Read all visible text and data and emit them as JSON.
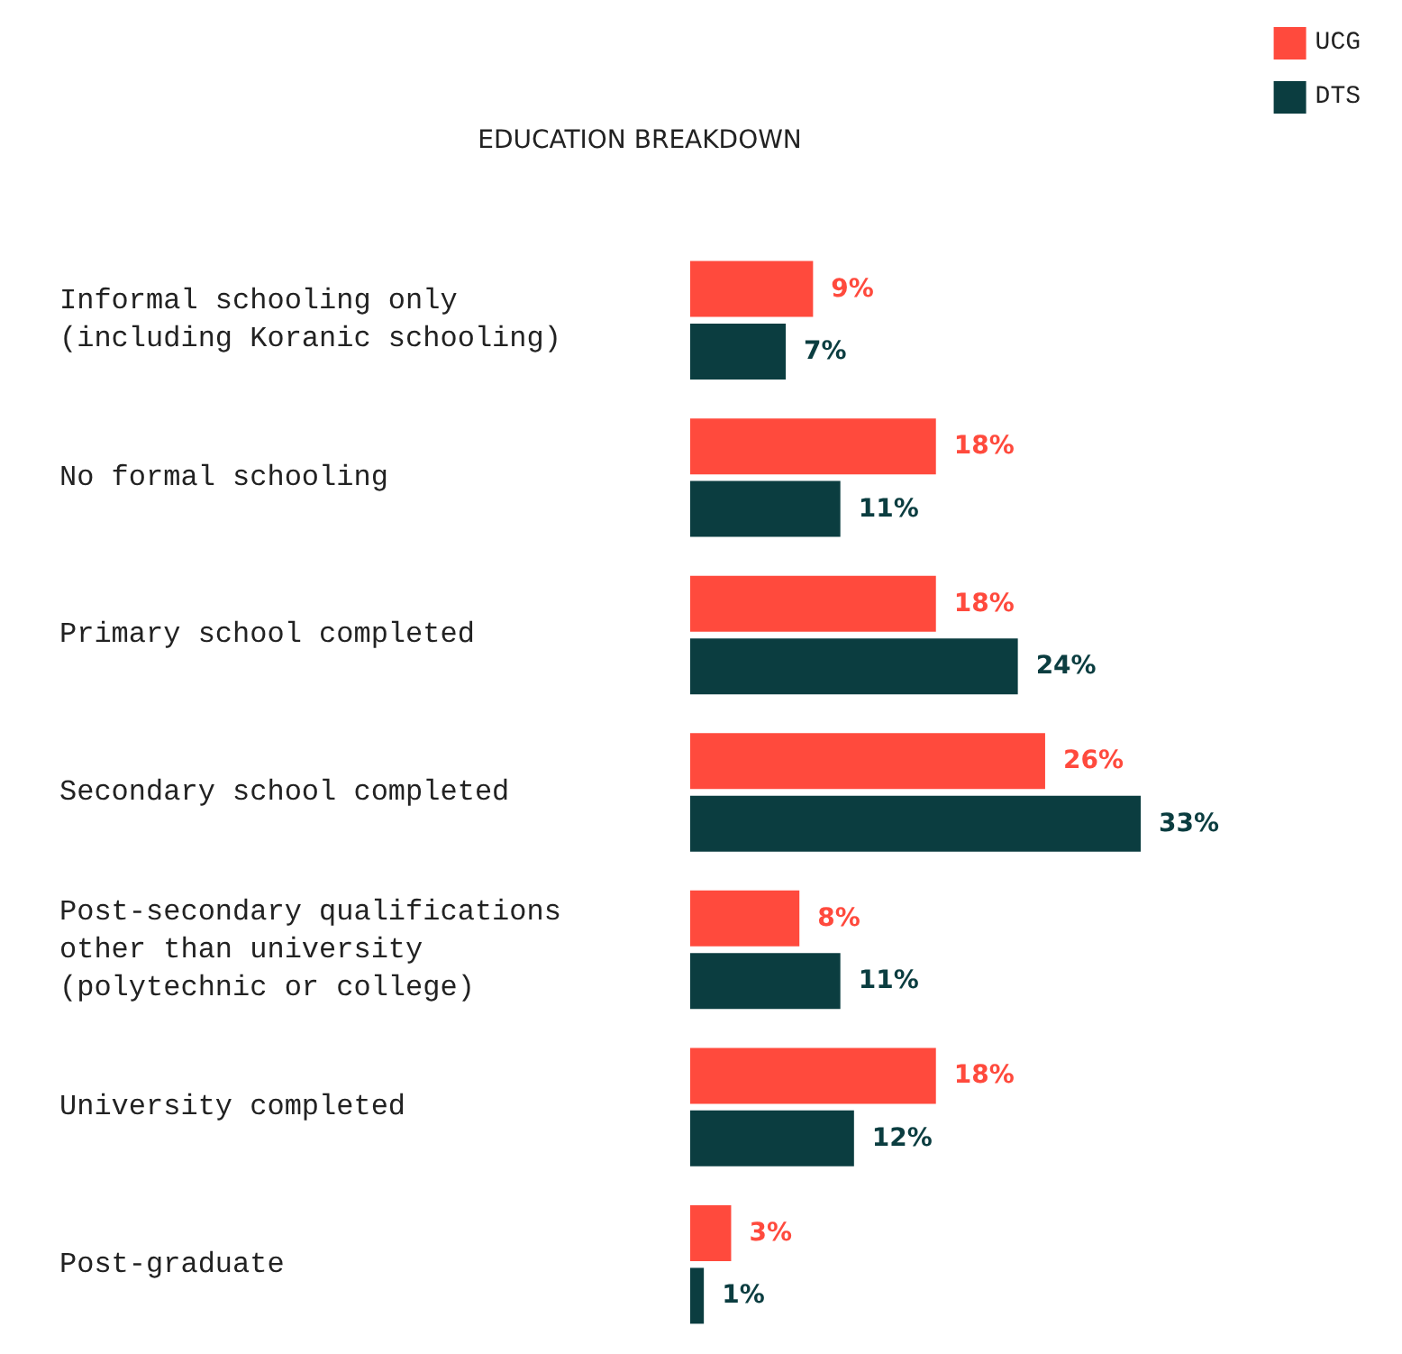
{
  "chart_data": {
    "type": "bar",
    "orientation": "horizontal",
    "title": "EDUCATION BREAKDOWN",
    "categories": [
      "Informal schooling only (including Koranic schooling)",
      "No formal schooling",
      "Primary school completed",
      "Secondary school completed",
      "Post-secondary qualifications other than university (polytechnic or college)",
      "University completed",
      "Post-graduate"
    ],
    "series": [
      {
        "name": "UCG",
        "color": "#ff4a3d",
        "values": [
          9,
          18,
          18,
          26,
          8,
          18,
          3
        ],
        "value_labels": [
          "9%",
          "18%",
          "18%",
          "26%",
          "8%",
          "18%",
          "3%"
        ]
      },
      {
        "name": "DTS",
        "color": "#0b3d40",
        "values": [
          7,
          11,
          24,
          33,
          11,
          12,
          1
        ],
        "value_labels": [
          "7%",
          "11%",
          "24%",
          "33%",
          "11%",
          "12%",
          "1%"
        ]
      }
    ],
    "legend": "top right",
    "grid": false
  }
}
